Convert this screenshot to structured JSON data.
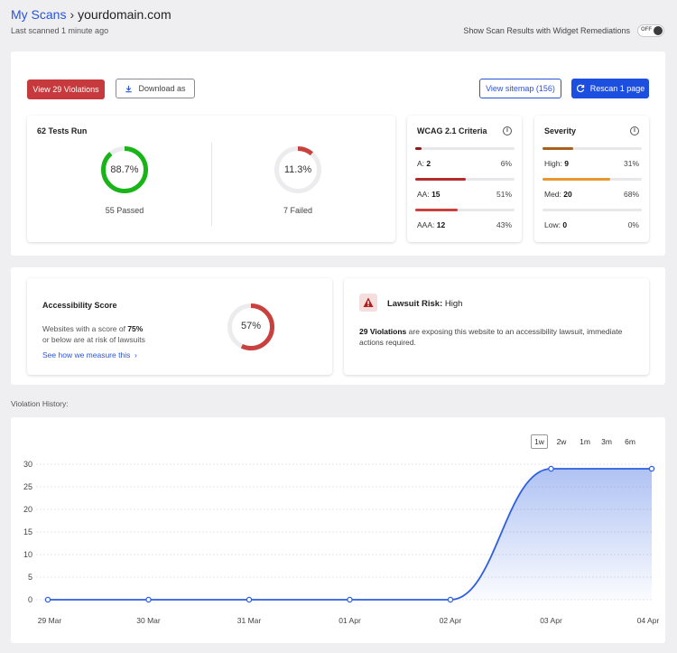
{
  "breadcrumb": {
    "parent": "My Scans",
    "separator": "›",
    "current": "yourdomain.com"
  },
  "last_scanned": "Last scanned 1 minute ago",
  "remediations": {
    "label": "Show Scan Results with Widget Remediations",
    "toggle_label": "OFF"
  },
  "toolbar": {
    "view_violations": "View 29 Violations",
    "download": "Download as",
    "view_sitemap": "View sitemap (156)",
    "rescan": "Rescan 1 page"
  },
  "tests": {
    "title": "62 Tests Run",
    "passed_pct": "88.7%",
    "passed_value": 0.887,
    "passed_label": "55 Passed",
    "failed_pct": "11.3%",
    "failed_value": 0.113,
    "failed_label": "7 Failed"
  },
  "wcag": {
    "title": "WCAG 2.1 Criteria",
    "rows": [
      {
        "label": "A:",
        "count": "2",
        "pct": "6%",
        "value": 0.06,
        "color": "#8c1c1c"
      },
      {
        "label": "AA:",
        "count": "15",
        "pct": "51%",
        "value": 0.51,
        "color": "#b52a2a"
      },
      {
        "label": "AAA:",
        "count": "12",
        "pct": "43%",
        "value": 0.43,
        "color": "#c9413e"
      }
    ]
  },
  "severity": {
    "title": "Severity",
    "rows": [
      {
        "label": "High:",
        "count": "9",
        "pct": "31%",
        "value": 0.31,
        "color": "#a8601c"
      },
      {
        "label": "Med:",
        "count": "20",
        "pct": "68%",
        "value": 0.68,
        "color": "#e8962e"
      },
      {
        "label": "Low:",
        "count": "0",
        "pct": "0%",
        "value": 0.0,
        "color": "#cccccc"
      }
    ]
  },
  "score": {
    "title": "Accessibility Score",
    "desc_prefix": "Websites with a score of ",
    "desc_bold": "75%",
    "desc_suffix": "or below are at risk of lawsuits",
    "link": "See how we measure this",
    "value_text": "57%",
    "value": 0.57
  },
  "lawsuit": {
    "title_prefix": "Lawsuit Risk: ",
    "level": "High",
    "desc_bold": "29 Violations",
    "desc_rest": " are exposing this website to an accessibility lawsuit, immediate actions required."
  },
  "history": {
    "label": "Violation History:",
    "ranges": [
      "1w",
      "2w",
      "1m",
      "3m",
      "6m"
    ],
    "active_range": "1w"
  },
  "colors": {
    "accent_blue": "#1c4fe0",
    "danger_red": "#c6393c",
    "pass_green": "#18b418",
    "line_blue": "#2d5fe0"
  },
  "chart_data": {
    "type": "area",
    "categories": [
      "29 Mar",
      "30 Mar",
      "31 Mar",
      "01 Apr",
      "02 Apr",
      "03 Apr",
      "04 Apr"
    ],
    "series": [
      {
        "values": [
          0,
          0,
          0,
          0,
          0,
          29,
          29
        ]
      }
    ],
    "yticks": [
      0,
      5,
      10,
      15,
      20,
      25,
      30
    ],
    "ylim": [
      0,
      30
    ],
    "grid": true
  }
}
